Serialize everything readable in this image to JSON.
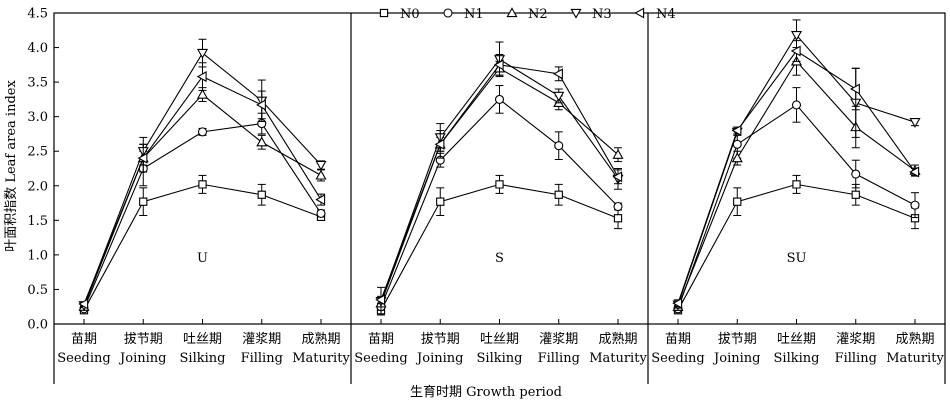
{
  "chart_data": {
    "type": "line",
    "ylabel": "叶面积指数 Leaf area index",
    "xlabel": "生育时期 Growth period",
    "ylim": [
      0,
      4.5
    ],
    "yticks": [
      "0.0",
      "0.5",
      "1.0",
      "1.5",
      "2.0",
      "2.5",
      "3.0",
      "3.5",
      "4.0",
      "4.5"
    ],
    "legend_position": "top",
    "categories": [
      {
        "cn": "苗期",
        "en": "Seeding"
      },
      {
        "cn": "拔节期",
        "en": "Joining"
      },
      {
        "cn": "吐丝期",
        "en": "Silking"
      },
      {
        "cn": "灌浆期",
        "en": "Filling"
      },
      {
        "cn": "成熟期",
        "en": "Maturity"
      }
    ],
    "series_legend": [
      {
        "name": "N0",
        "marker": "square"
      },
      {
        "name": "N1",
        "marker": "circle"
      },
      {
        "name": "N2",
        "marker": "triangle-up"
      },
      {
        "name": "N3",
        "marker": "triangle-down"
      },
      {
        "name": "N4",
        "marker": "triangle-left"
      }
    ],
    "panels": [
      {
        "label": "U",
        "series": [
          {
            "name": "N0",
            "values": [
              0.2,
              1.77,
              2.02,
              1.87,
              1.55
            ],
            "errors": [
              0.03,
              0.2,
              0.13,
              0.15,
              0.05
            ]
          },
          {
            "name": "N1",
            "values": [
              0.22,
              2.25,
              2.78,
              2.9,
              1.6
            ],
            "errors": [
              0.03,
              0.25,
              0.05,
              0.15,
              0.05
            ]
          },
          {
            "name": "N2",
            "values": [
              0.25,
              2.4,
              3.32,
              2.63,
              2.15
            ],
            "errors": [
              0.03,
              0.2,
              0.1,
              0.1,
              0.08
            ]
          },
          {
            "name": "N3",
            "values": [
              0.27,
              2.5,
              3.92,
              3.23,
              2.3
            ],
            "errors": [
              0.03,
              0.2,
              0.2,
              0.3,
              0.06
            ]
          },
          {
            "name": "N4",
            "values": [
              0.29,
              2.4,
              3.58,
              3.17,
              1.8
            ],
            "errors": [
              0.03,
              0.2,
              0.2,
              0.2,
              0.08
            ]
          }
        ]
      },
      {
        "label": "S",
        "series": [
          {
            "name": "N0",
            "values": [
              0.2,
              1.77,
              2.02,
              1.87,
              1.53
            ],
            "errors": [
              0.05,
              0.2,
              0.13,
              0.15,
              0.15
            ]
          },
          {
            "name": "N1",
            "values": [
              0.25,
              2.37,
              3.25,
              2.58,
              1.7
            ],
            "errors": [
              0.05,
              0.1,
              0.2,
              0.2,
              0.05
            ]
          },
          {
            "name": "N2",
            "values": [
              0.3,
              2.6,
              3.7,
              3.2,
              2.45
            ],
            "errors": [
              0.05,
              0.1,
              0.1,
              0.1,
              0.1
            ]
          },
          {
            "name": "N3",
            "values": [
              0.33,
              2.7,
              3.83,
              3.3,
              2.1
            ],
            "errors": [
              0.2,
              0.2,
              0.25,
              0.1,
              0.15
            ]
          },
          {
            "name": "N4",
            "values": [
              0.35,
              2.6,
              3.75,
              3.62,
              2.13
            ],
            "errors": [
              0.05,
              0.2,
              0.15,
              0.1,
              0.1
            ]
          }
        ]
      },
      {
        "label": "SU",
        "series": [
          {
            "name": "N0",
            "values": [
              0.2,
              1.77,
              2.02,
              1.87,
              1.53
            ],
            "errors": [
              0.05,
              0.2,
              0.13,
              0.15,
              0.15
            ]
          },
          {
            "name": "N1",
            "values": [
              0.22,
              2.6,
              3.17,
              2.17,
              1.72
            ],
            "errors": [
              0.05,
              0.2,
              0.25,
              0.2,
              0.18
            ]
          },
          {
            "name": "N2",
            "values": [
              0.25,
              2.4,
              3.8,
              2.85,
              2.22
            ],
            "errors": [
              0.05,
              0.1,
              0.2,
              0.3,
              0.08
            ]
          },
          {
            "name": "N3",
            "values": [
              0.28,
              2.78,
              4.18,
              3.2,
              2.92
            ],
            "errors": [
              0.05,
              0.05,
              0.22,
              0.5,
              0.05
            ]
          },
          {
            "name": "N4",
            "values": [
              0.3,
              2.8,
              3.95,
              3.4,
              2.2
            ],
            "errors": [
              0.05,
              0.05,
              0.15,
              0.3,
              0.05
            ]
          }
        ]
      }
    ]
  }
}
